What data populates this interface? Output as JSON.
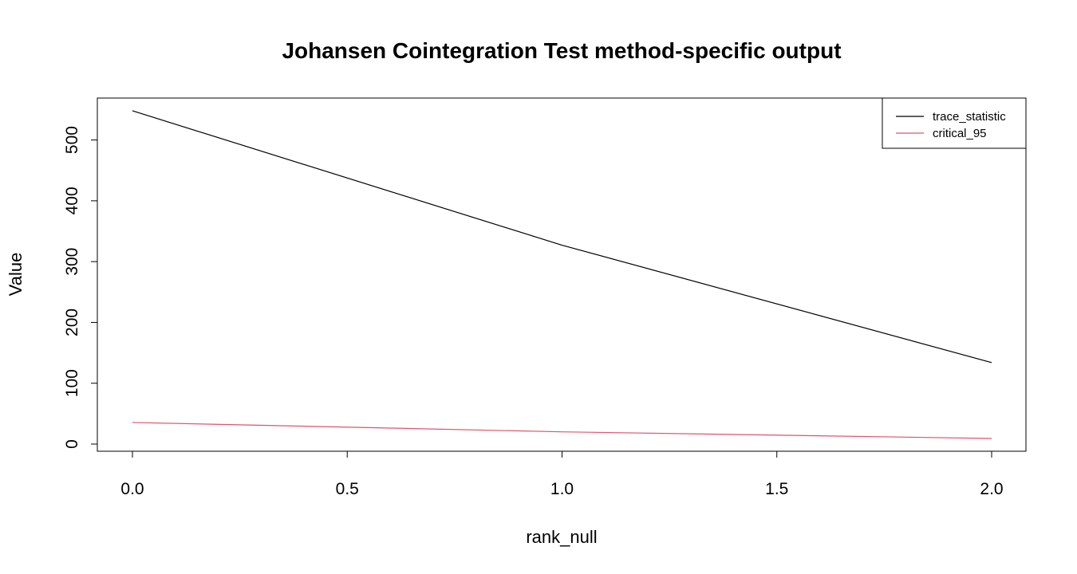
{
  "chart_data": {
    "type": "line",
    "title": "Johansen Cointegration Test method-specific output",
    "xlabel": "rank_null",
    "ylabel": "Value",
    "x": [
      0,
      1,
      2
    ],
    "xlim": [
      0,
      2
    ],
    "ylim": [
      0,
      550
    ],
    "x_ticks": [
      "0.0",
      "0.5",
      "1.0",
      "1.5",
      "2.0"
    ],
    "y_ticks": [
      "0",
      "100",
      "200",
      "300",
      "400",
      "500"
    ],
    "grid": false,
    "legend_position": "top-right",
    "series": [
      {
        "name": "trace_statistic",
        "color": "#000000",
        "values": [
          548,
          327,
          134
        ]
      },
      {
        "name": "critical_95",
        "color": "#DF536B",
        "values": [
          35.5,
          20.1,
          9.2
        ]
      }
    ]
  }
}
